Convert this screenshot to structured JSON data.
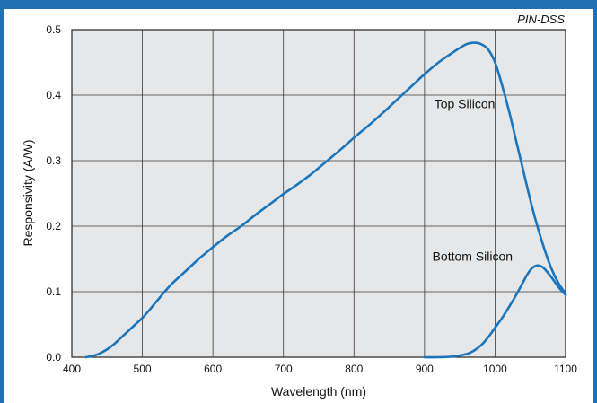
{
  "header_note": "PIN-DSS",
  "chart_data": {
    "type": "line",
    "title": "",
    "xlabel": "Wavelength (nm)",
    "ylabel": "Responsivity (A/W)",
    "xlim": [
      400,
      1100
    ],
    "ylim": [
      0,
      0.5
    ],
    "x_ticks": [
      400,
      500,
      600,
      700,
      800,
      900,
      1000,
      1100
    ],
    "y_ticks": [
      0.0,
      0.1,
      0.2,
      0.3,
      0.4,
      0.5
    ],
    "x_tick_labels": [
      "400",
      "500",
      "600",
      "700",
      "800",
      "900",
      "1000",
      "1100"
    ],
    "y_tick_labels": [
      "0.0",
      "0.1",
      "0.2",
      "0.3",
      "0.4",
      "0.5"
    ],
    "grid": true,
    "series": [
      {
        "name": "Top Silicon",
        "color": "#1a75bc",
        "x": [
          420,
          430,
          440,
          450,
          460,
          470,
          480,
          490,
          500,
          510,
          520,
          540,
          560,
          580,
          600,
          620,
          640,
          660,
          680,
          700,
          720,
          740,
          760,
          780,
          800,
          820,
          840,
          860,
          880,
          900,
          920,
          940,
          950,
          960,
          970,
          980,
          990,
          1000,
          1010,
          1020,
          1030,
          1040,
          1050,
          1060,
          1070,
          1080,
          1090,
          1100
        ],
        "y": [
          0.0,
          0.002,
          0.006,
          0.012,
          0.02,
          0.03,
          0.04,
          0.05,
          0.06,
          0.072,
          0.085,
          0.11,
          0.13,
          0.15,
          0.168,
          0.185,
          0.2,
          0.217,
          0.233,
          0.249,
          0.264,
          0.28,
          0.298,
          0.316,
          0.335,
          0.353,
          0.372,
          0.392,
          0.412,
          0.432,
          0.45,
          0.465,
          0.472,
          0.478,
          0.48,
          0.478,
          0.47,
          0.45,
          0.415,
          0.375,
          0.33,
          0.285,
          0.24,
          0.2,
          0.165,
          0.135,
          0.113,
          0.097
        ]
      },
      {
        "name": "Bottom Silicon",
        "color": "#1a75bc",
        "x": [
          900,
          920,
          940,
          960,
          970,
          980,
          990,
          1000,
          1010,
          1020,
          1030,
          1040,
          1045,
          1050,
          1055,
          1060,
          1065,
          1070,
          1080,
          1090,
          1100
        ],
        "y": [
          0.0,
          0.0,
          0.001,
          0.005,
          0.01,
          0.018,
          0.03,
          0.045,
          0.06,
          0.077,
          0.095,
          0.115,
          0.125,
          0.133,
          0.138,
          0.14,
          0.139,
          0.135,
          0.122,
          0.107,
          0.095
        ]
      }
    ],
    "annotations": [
      {
        "text": "Top Silicon",
        "x": 1000,
        "y": 0.38
      },
      {
        "text": "Bottom Silicon",
        "x": 1025,
        "y": 0.147
      }
    ]
  }
}
